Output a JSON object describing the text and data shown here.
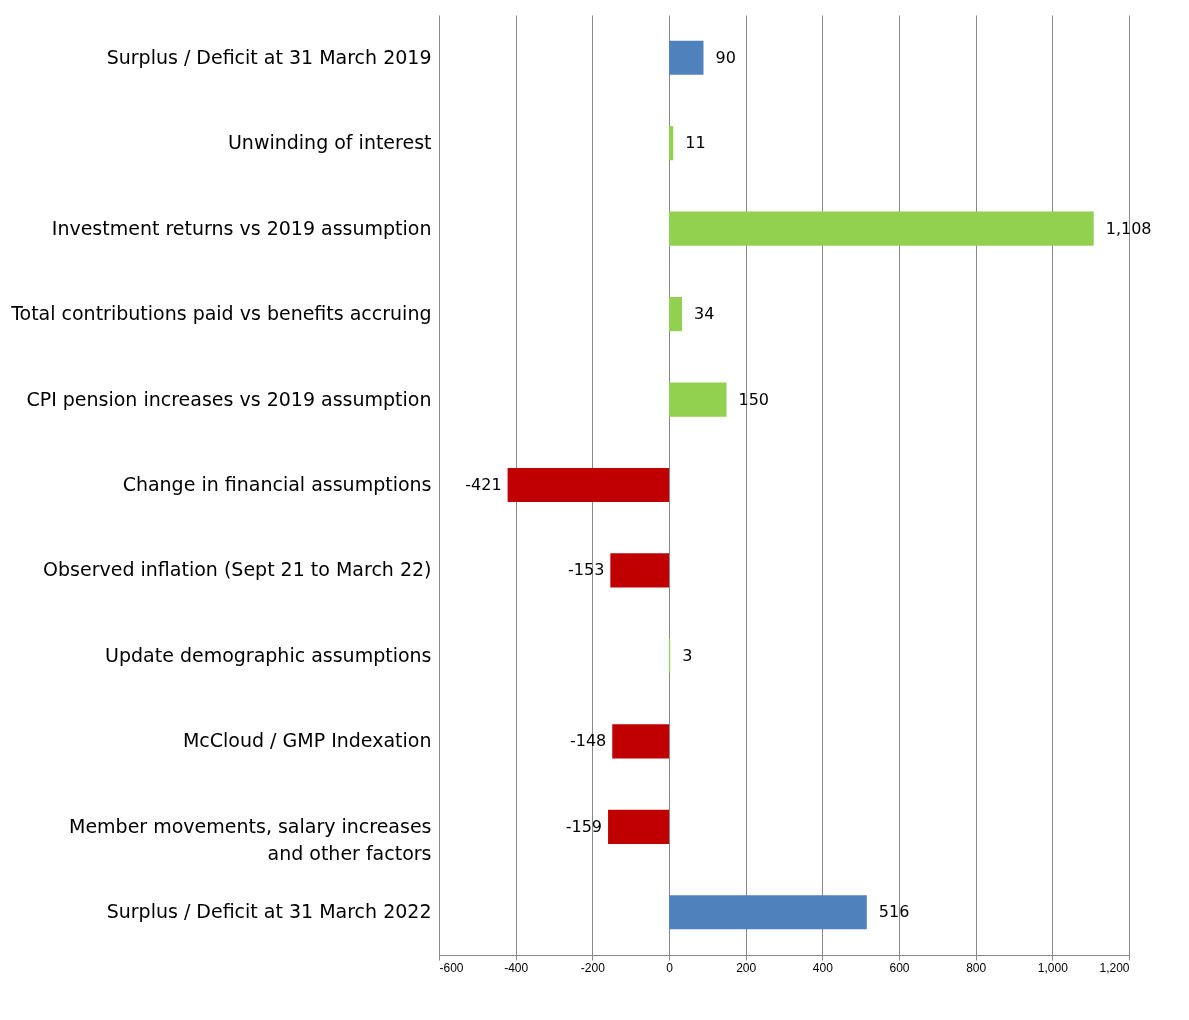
{
  "chart_data": {
    "type": "bar",
    "orientation": "horizontal",
    "categories": [
      "Surplus / Deficit at 31 March 2019",
      "Unwinding of interest",
      "Investment returns vs 2019 assumption",
      "Total contributions paid vs benefits accruing",
      "CPI pension increases vs 2019 assumption",
      "Change in financial assumptions",
      "Observed inflation (Sept 21 to March 22)",
      "Update demographic assumptions",
      "McCloud / GMP Indexation",
      "Member movements, salary increases\nand other factors",
      "Surplus / Deficit at 31 March 2022"
    ],
    "values": [
      90,
      11,
      1108,
      34,
      150,
      -421,
      -153,
      3,
      -148,
      -159,
      516
    ],
    "value_labels": [
      "90",
      "11",
      "1,108",
      "34",
      "150",
      "-421",
      "-153",
      "3",
      "-148",
      "-159",
      "516"
    ],
    "colors": [
      "#4f81bd",
      "#92d050",
      "#92d050",
      "#92d050",
      "#92d050",
      "#c00000",
      "#c00000",
      "#92d050",
      "#c00000",
      "#c00000",
      "#4f81bd"
    ],
    "xlim": [
      -600,
      1200
    ],
    "xticks": [
      -600,
      -400,
      -200,
      0,
      200,
      400,
      600,
      800,
      {
        "value": 1000,
        "label": "1,000"
      },
      {
        "value": 1200,
        "label": "1,200"
      }
    ],
    "grid": "x"
  }
}
